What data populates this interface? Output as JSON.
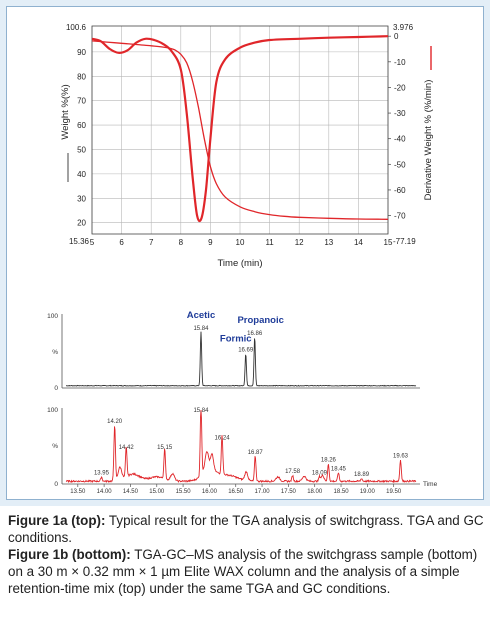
{
  "chart_data": [
    {
      "type": "line",
      "title": "",
      "xlabel": "Time (min)",
      "ylabel": "Weight %(%)",
      "y2label": "Derivative Weight % (%/min)",
      "xlim": [
        5,
        15
      ],
      "ylim": [
        15.36,
        100.6
      ],
      "y2lim": [
        -77.19,
        3.976
      ],
      "x_ticks": [
        "5",
        "6",
        "7",
        "8",
        "9",
        "10",
        "11",
        "12",
        "13",
        "14",
        "15"
      ],
      "y_ticks": [
        "20",
        "30",
        "40",
        "50",
        "60",
        "70",
        "80",
        "90"
      ],
      "y_top_label": "100.6",
      "y_bottom_label": "15.36",
      "y2_ticks": [
        "0",
        "-10",
        "-20",
        "-30",
        "-40",
        "-50",
        "-60",
        "-70"
      ],
      "y2_top_label": "3.976",
      "y2_bottom_label": "-77.19",
      "grid": true,
      "series": [
        {
          "role": "weight",
          "axis": "left",
          "x": [
            5.0,
            5.5,
            6.0,
            6.5,
            7.0,
            7.5,
            7.8,
            8.0,
            8.2,
            8.4,
            8.6,
            8.8,
            9.0,
            9.2,
            9.5,
            10.0,
            10.5,
            11.0,
            11.5,
            12.0,
            13.0,
            14.0,
            15.0
          ],
          "values": [
            94.5,
            94.0,
            93.5,
            93.0,
            92.5,
            91.8,
            90.8,
            89.0,
            85.5,
            78.0,
            67.0,
            54.0,
            43.0,
            36.0,
            30.5,
            26.5,
            24.5,
            23.3,
            22.6,
            22.2,
            21.8,
            21.5,
            21.4
          ]
        },
        {
          "role": "derivative weight",
          "axis": "right",
          "x": [
            5.0,
            5.3,
            5.6,
            5.9,
            6.2,
            6.5,
            6.8,
            7.1,
            7.4,
            7.7,
            8.0,
            8.2,
            8.4,
            8.55,
            8.7,
            8.85,
            9.0,
            9.2,
            9.5,
            10.0,
            10.5,
            11.0,
            12.0,
            13.0,
            14.0,
            15.0
          ],
          "values": [
            -1.0,
            -2.0,
            -5.0,
            -6.5,
            -5.5,
            -2.5,
            -1.0,
            -1.5,
            -3.0,
            -6.0,
            -13.0,
            -30.0,
            -55.0,
            -70.0,
            -71.0,
            -60.0,
            -40.0,
            -18.0,
            -9.0,
            -4.5,
            -2.5,
            -1.5,
            -1.0,
            -0.6,
            -0.3,
            0.0
          ]
        }
      ]
    },
    {
      "type": "line",
      "title": "",
      "xlabel": "",
      "xlim": [
        13.2,
        20.0
      ],
      "ylim": [
        0,
        100
      ],
      "y_ticks": [
        "100",
        "%",
        "0"
      ],
      "peak_labels": [
        {
          "name": "Acetic",
          "time": "15.84",
          "x": 15.84,
          "value": 75
        },
        {
          "name": "Formic",
          "time": "16.69",
          "x": 16.69,
          "value": 45
        },
        {
          "name": "Propanoic",
          "time": "16.86",
          "x": 16.86,
          "value": 68
        }
      ]
    },
    {
      "type": "line",
      "title": "",
      "xlabel": "Time",
      "xlim": [
        13.2,
        20.0
      ],
      "ylim": [
        0,
        100
      ],
      "x_ticks": [
        "13.50",
        "14.00",
        "14.50",
        "15.00",
        "15.50",
        "16.00",
        "16.50",
        "17.00",
        "17.50",
        "18.00",
        "18.50",
        "19.00",
        "19.50"
      ],
      "y_ticks": [
        "100",
        "%",
        "0"
      ],
      "peaks": [
        {
          "time": "13.95",
          "x": 13.95,
          "value": 6
        },
        {
          "time": "14.20",
          "x": 14.2,
          "value": 78
        },
        {
          "time": "14.42",
          "x": 14.42,
          "value": 42
        },
        {
          "time": "15.15",
          "x": 15.15,
          "value": 42
        },
        {
          "time": "15.84",
          "x": 15.84,
          "value": 100
        },
        {
          "time": "16.24",
          "x": 16.24,
          "value": 55
        },
        {
          "time": "16.87",
          "x": 16.87,
          "value": 35
        },
        {
          "time": "17.58",
          "x": 17.58,
          "value": 8
        },
        {
          "time": "18.09",
          "x": 18.09,
          "value": 6
        },
        {
          "time": "18.26",
          "x": 18.26,
          "value": 24
        },
        {
          "time": "18.45",
          "x": 18.45,
          "value": 12
        },
        {
          "time": "18.89",
          "x": 18.89,
          "value": 4
        },
        {
          "time": "19.63",
          "x": 19.63,
          "value": 30
        }
      ]
    }
  ],
  "caption": {
    "fig1a_label": "Figure 1a (top):",
    "fig1a_text": " Typical result for the TGA analysis of switchgrass. TGA and GC conditions.",
    "fig1b_label": "Figure 1b (bottom):",
    "fig1b_text": " TGA-GC–MS analysis of the switchgrass sample (bottom) on a 30 m × 0.32 mm × 1 µm Elite WAX column and the analysis of a simple retention-time mix (top) under the same TGA and GC conditions."
  },
  "colors": {
    "curve": "#e0262a",
    "grid": "#b8b8b8",
    "label_blue": "#1f3c99",
    "chrom_top": "#333333",
    "chrom_bottom": "#e0262a",
    "panel_bg": "#e3eef7",
    "panel_border": "#8fb1cf"
  }
}
